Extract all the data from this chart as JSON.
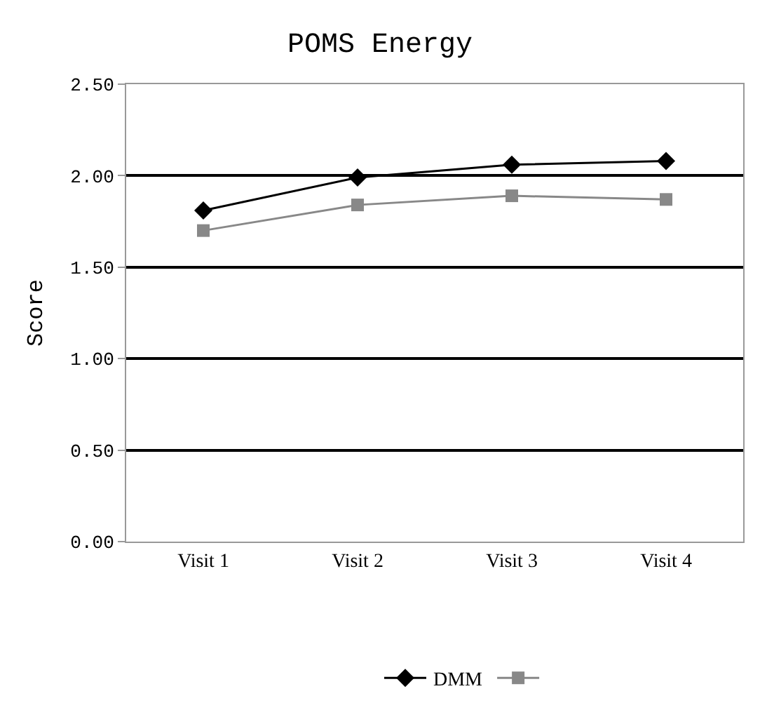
{
  "chart_data": {
    "type": "line",
    "title": "POMS Energy",
    "ylabel": "Score",
    "categories": [
      "Visit 1",
      "Visit 2",
      "Visit 3",
      "Visit 4"
    ],
    "series": [
      {
        "name": "DMM",
        "color": "#000000",
        "marker": "diamond",
        "values": [
          1.81,
          1.99,
          2.06,
          2.08
        ]
      },
      {
        "color": "#888888",
        "marker": "square",
        "values": [
          1.7,
          1.84,
          1.89,
          1.87
        ]
      }
    ],
    "ylim": [
      0,
      2.5
    ],
    "yticks": [
      {
        "value": 0,
        "label": "0.00"
      },
      {
        "value": 0.5,
        "label": "0.50"
      },
      {
        "value": 1,
        "label": "1.00"
      },
      {
        "value": 1.5,
        "label": "1.50"
      },
      {
        "value": 2,
        "label": "2.00"
      },
      {
        "value": 2.5,
        "label": "2.50"
      }
    ],
    "grid": "y",
    "legend": "bottom"
  }
}
